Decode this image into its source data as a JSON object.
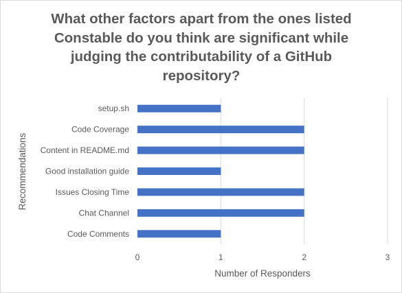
{
  "chart_data": {
    "type": "bar",
    "orientation": "horizontal",
    "title_lines": [
      "What other factors apart from the ones listed",
      "Constable do you think are significant while",
      "judging the contributability of a GitHub",
      "repository?"
    ],
    "xlabel": "Number of Responders",
    "ylabel": "Recommendations",
    "xlim": [
      0,
      3
    ],
    "xticks": [
      "0",
      "1",
      "2",
      "3"
    ],
    "categories": [
      "setup.sh",
      "Code Coverage",
      "Content in README.md",
      "Good installation guide",
      "Issues Closing Time",
      "Chat Channel",
      "Code Comments"
    ],
    "values": [
      1,
      2,
      2,
      1,
      2,
      2,
      1
    ],
    "bar_color": "#4472c4",
    "grid_color": "#d9d9d9",
    "grid": "vertical"
  }
}
